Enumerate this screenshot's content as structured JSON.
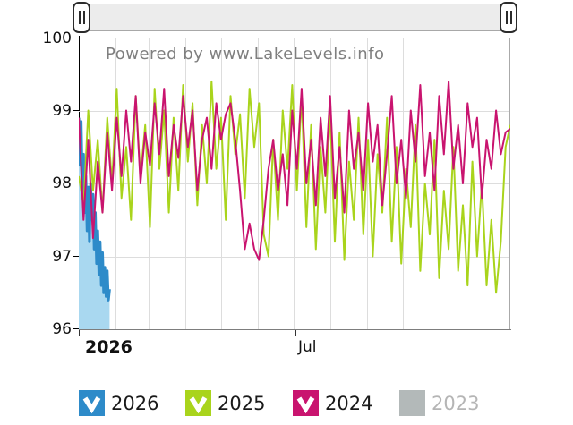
{
  "watermark": "Powered by www.LakeLevels.info",
  "y_axis": {
    "labels": [
      "100",
      "99",
      "98",
      "97",
      "96"
    ]
  },
  "x_axis": {
    "labels": [
      {
        "text": "2026"
      },
      {
        "text": "Jul"
      }
    ]
  },
  "legend": [
    {
      "label": "2026",
      "color": "#2e8bc9",
      "checked": true
    },
    {
      "label": "2025",
      "color": "#a9d41c",
      "checked": true
    },
    {
      "label": "2024",
      "color": "#c9146f",
      "checked": true
    },
    {
      "label": "2023",
      "color": "#b3b9b9",
      "checked": false
    }
  ],
  "colors": {
    "grid": "#dddddd",
    "plot_right_border": "#aaaaaa",
    "axis": "#000000",
    "blue_area_fill": "#a9d8f0"
  },
  "chart_data": {
    "type": "line",
    "title": "",
    "xlabel": "",
    "ylabel": "",
    "x_unit": "day_of_year",
    "x_range": [
      1,
      365
    ],
    "ylim": [
      96,
      100
    ],
    "y_ticks": [
      96,
      97,
      98,
      99,
      100
    ],
    "x_tick_days": [
      1,
      182
    ],
    "x_tick_labels": [
      "2026",
      "Jul"
    ],
    "month_gridline_days": [
      32,
      60,
      91,
      121,
      152,
      182,
      213,
      244,
      274,
      305,
      335
    ],
    "grid": true,
    "legend_position": "bottom",
    "series": [
      {
        "name": "2026",
        "color": "#2e8bc9",
        "type": "area",
        "fill_color": "#a9d8f0",
        "line_width": 3,
        "visible": true,
        "points": [
          [
            1,
            98.9
          ],
          [
            2,
            98.25
          ],
          [
            3,
            98.85
          ],
          [
            4,
            97.95
          ],
          [
            5,
            98.4
          ],
          [
            6,
            97.6
          ],
          [
            7,
            98.1
          ],
          [
            8,
            97.35
          ],
          [
            9,
            97.95
          ],
          [
            10,
            97.2
          ],
          [
            11,
            98.0
          ],
          [
            12,
            97.5
          ],
          [
            13,
            97.85
          ],
          [
            14,
            97.1
          ],
          [
            15,
            97.6
          ],
          [
            16,
            96.9
          ],
          [
            17,
            97.35
          ],
          [
            18,
            96.75
          ],
          [
            19,
            97.2
          ],
          [
            20,
            96.6
          ],
          [
            21,
            97.05
          ],
          [
            22,
            96.5
          ],
          [
            23,
            96.85
          ],
          [
            24,
            96.45
          ],
          [
            25,
            96.8
          ],
          [
            26,
            96.4
          ],
          [
            27,
            96.55
          ]
        ]
      },
      {
        "name": "2025",
        "color": "#a9d41c",
        "type": "line",
        "line_width": 2,
        "visible": true,
        "points": [
          [
            1,
            98.1
          ],
          [
            5,
            97.7
          ],
          [
            9,
            99.0
          ],
          [
            13,
            97.9
          ],
          [
            17,
            98.6
          ],
          [
            21,
            97.6
          ],
          [
            25,
            98.9
          ],
          [
            29,
            98.0
          ],
          [
            33,
            99.3
          ],
          [
            37,
            97.8
          ],
          [
            41,
            98.5
          ],
          [
            45,
            97.5
          ],
          [
            49,
            99.2
          ],
          [
            53,
            98.1
          ],
          [
            57,
            98.8
          ],
          [
            61,
            97.4
          ],
          [
            65,
            99.3
          ],
          [
            69,
            98.2
          ],
          [
            73,
            99.0
          ],
          [
            77,
            97.6
          ],
          [
            81,
            98.9
          ],
          [
            85,
            97.9
          ],
          [
            89,
            99.35
          ],
          [
            93,
            98.3
          ],
          [
            97,
            99.1
          ],
          [
            101,
            97.7
          ],
          [
            105,
            98.8
          ],
          [
            109,
            98.0
          ],
          [
            113,
            99.4
          ],
          [
            117,
            98.2
          ],
          [
            121,
            98.9
          ],
          [
            125,
            97.5
          ],
          [
            129,
            99.2
          ],
          [
            133,
            98.4
          ],
          [
            137,
            98.95
          ],
          [
            141,
            97.8
          ],
          [
            145,
            99.3
          ],
          [
            149,
            98.5
          ],
          [
            153,
            99.1
          ],
          [
            157,
            97.3
          ],
          [
            161,
            97.0
          ],
          [
            165,
            98.6
          ],
          [
            169,
            97.5
          ],
          [
            173,
            99.0
          ],
          [
            177,
            98.2
          ],
          [
            181,
            99.35
          ],
          [
            185,
            97.9
          ],
          [
            189,
            99.2
          ],
          [
            193,
            97.4
          ],
          [
            197,
            98.8
          ],
          [
            201,
            97.1
          ],
          [
            205,
            98.5
          ],
          [
            209,
            97.6
          ],
          [
            213,
            99.0
          ],
          [
            217,
            97.2
          ],
          [
            221,
            98.7
          ],
          [
            225,
            96.95
          ],
          [
            229,
            98.3
          ],
          [
            233,
            97.5
          ],
          [
            237,
            98.9
          ],
          [
            241,
            97.3
          ],
          [
            245,
            98.6
          ],
          [
            249,
            97.0
          ],
          [
            253,
            98.4
          ],
          [
            257,
            97.6
          ],
          [
            261,
            98.9
          ],
          [
            265,
            97.2
          ],
          [
            269,
            98.5
          ],
          [
            273,
            96.9
          ],
          [
            277,
            98.2
          ],
          [
            281,
            97.4
          ],
          [
            285,
            98.8
          ],
          [
            289,
            96.8
          ],
          [
            293,
            98.0
          ],
          [
            297,
            97.3
          ],
          [
            301,
            98.6
          ],
          [
            305,
            96.7
          ],
          [
            309,
            97.9
          ],
          [
            313,
            97.1
          ],
          [
            317,
            98.5
          ],
          [
            321,
            96.8
          ],
          [
            325,
            97.7
          ],
          [
            329,
            96.6
          ],
          [
            333,
            98.3
          ],
          [
            337,
            97.0
          ],
          [
            341,
            98.0
          ],
          [
            345,
            96.6
          ],
          [
            349,
            97.5
          ],
          [
            353,
            96.5
          ],
          [
            357,
            97.2
          ],
          [
            361,
            98.5
          ],
          [
            365,
            98.8
          ]
        ]
      },
      {
        "name": "2024",
        "color": "#c9146f",
        "type": "line",
        "line_width": 2,
        "visible": true,
        "points": [
          [
            1,
            98.9
          ],
          [
            5,
            97.5
          ],
          [
            9,
            98.6
          ],
          [
            13,
            97.25
          ],
          [
            17,
            98.3
          ],
          [
            21,
            97.6
          ],
          [
            25,
            98.7
          ],
          [
            29,
            97.9
          ],
          [
            33,
            98.9
          ],
          [
            37,
            98.1
          ],
          [
            41,
            99.0
          ],
          [
            45,
            98.3
          ],
          [
            49,
            99.2
          ],
          [
            53,
            98.0
          ],
          [
            57,
            98.7
          ],
          [
            61,
            98.25
          ],
          [
            65,
            99.1
          ],
          [
            69,
            98.4
          ],
          [
            73,
            99.3
          ],
          [
            77,
            98.1
          ],
          [
            81,
            98.8
          ],
          [
            85,
            98.35
          ],
          [
            89,
            99.2
          ],
          [
            93,
            98.5
          ],
          [
            97,
            99.0
          ],
          [
            101,
            97.9
          ],
          [
            105,
            98.6
          ],
          [
            109,
            98.9
          ],
          [
            113,
            98.2
          ],
          [
            117,
            99.1
          ],
          [
            121,
            98.6
          ],
          [
            125,
            98.95
          ],
          [
            129,
            99.1
          ],
          [
            133,
            98.6
          ],
          [
            137,
            97.9
          ],
          [
            141,
            97.1
          ],
          [
            145,
            97.45
          ],
          [
            149,
            97.1
          ],
          [
            153,
            96.95
          ],
          [
            157,
            97.5
          ],
          [
            161,
            98.2
          ],
          [
            165,
            98.6
          ],
          [
            169,
            97.9
          ],
          [
            173,
            98.4
          ],
          [
            177,
            97.7
          ],
          [
            181,
            99.0
          ],
          [
            185,
            98.2
          ],
          [
            189,
            99.3
          ],
          [
            193,
            98.0
          ],
          [
            197,
            98.6
          ],
          [
            201,
            97.7
          ],
          [
            205,
            98.9
          ],
          [
            209,
            98.1
          ],
          [
            213,
            99.2
          ],
          [
            217,
            97.8
          ],
          [
            221,
            98.5
          ],
          [
            225,
            97.6
          ],
          [
            229,
            99.0
          ],
          [
            233,
            98.2
          ],
          [
            237,
            98.7
          ],
          [
            241,
            97.9
          ],
          [
            245,
            99.1
          ],
          [
            249,
            98.3
          ],
          [
            253,
            98.8
          ],
          [
            257,
            97.7
          ],
          [
            261,
            98.4
          ],
          [
            265,
            99.2
          ],
          [
            269,
            98.0
          ],
          [
            273,
            98.6
          ],
          [
            277,
            97.8
          ],
          [
            281,
            99.0
          ],
          [
            285,
            98.3
          ],
          [
            289,
            99.35
          ],
          [
            293,
            98.1
          ],
          [
            297,
            98.7
          ],
          [
            301,
            97.9
          ],
          [
            305,
            99.2
          ],
          [
            309,
            98.4
          ],
          [
            313,
            99.4
          ],
          [
            317,
            98.2
          ],
          [
            321,
            98.8
          ],
          [
            325,
            98.0
          ],
          [
            329,
            99.1
          ],
          [
            333,
            98.5
          ],
          [
            337,
            98.9
          ],
          [
            341,
            97.8
          ],
          [
            345,
            98.6
          ],
          [
            349,
            98.2
          ],
          [
            353,
            99.0
          ],
          [
            357,
            98.4
          ],
          [
            361,
            98.7
          ],
          [
            365,
            98.75
          ]
        ]
      },
      {
        "name": "2023",
        "color": "#b3b9b9",
        "type": "line",
        "line_width": 2,
        "visible": false,
        "points": []
      }
    ]
  }
}
